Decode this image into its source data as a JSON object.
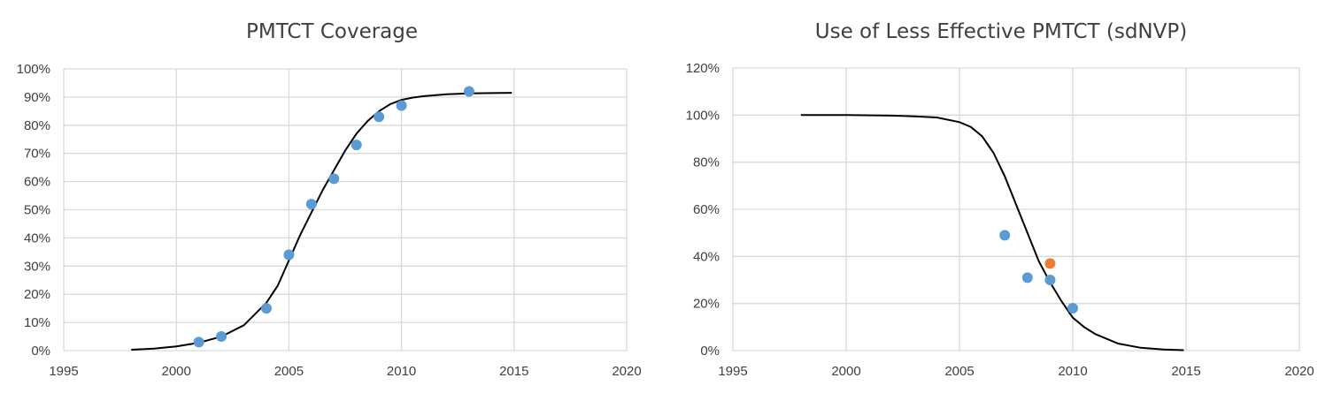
{
  "chart_data": [
    {
      "type": "scatter",
      "title": "PMTCT Coverage",
      "xlim": [
        1995,
        2020
      ],
      "ylim": [
        0,
        100
      ],
      "x_ticks": [
        "1995",
        "2000",
        "2005",
        "2010",
        "2015",
        "2020"
      ],
      "y_ticks": [
        "0%",
        "10%",
        "20%",
        "30%",
        "40%",
        "50%",
        "60%",
        "70%",
        "80%",
        "90%",
        "100%"
      ],
      "grid": true,
      "colors": {
        "points": "#5b9bd5",
        "curve": "#000000",
        "grid": "#d9d9d9"
      },
      "series": [
        {
          "kind": "points",
          "x": [
            2001,
            2002,
            2004,
            2005,
            2006,
            2007,
            2008,
            2009,
            2010,
            2013
          ],
          "y": [
            3,
            5,
            15,
            34,
            52,
            61,
            73,
            83,
            87,
            92
          ]
        },
        {
          "kind": "curve",
          "x": [
            1998,
            1999,
            2000,
            2001,
            2002,
            2003,
            2004,
            2004.5,
            2005,
            2005.5,
            2006,
            2006.5,
            2007,
            2007.5,
            2008,
            2008.5,
            2009,
            2009.5,
            2010,
            2010.5,
            2011,
            2012,
            2013,
            2014,
            2014.9
          ],
          "y": [
            0.3,
            0.7,
            1.5,
            2.8,
            5,
            9,
            17,
            23,
            32,
            41,
            49,
            57,
            64,
            71,
            77,
            81.5,
            85,
            87.5,
            89,
            89.8,
            90.3,
            91,
            91.3,
            91.4,
            91.5
          ]
        }
      ]
    },
    {
      "type": "scatter",
      "title": "Use of Less Effective PMTCT (sdNVP)",
      "xlim": [
        1995,
        2020
      ],
      "ylim": [
        0,
        120
      ],
      "x_ticks": [
        "1995",
        "2000",
        "2005",
        "2010",
        "2015",
        "2020"
      ],
      "y_ticks": [
        "0%",
        "20%",
        "40%",
        "60%",
        "80%",
        "100%",
        "120%"
      ],
      "grid": true,
      "colors": {
        "points": "#5b9bd5",
        "highlight": "#ed7d31",
        "curve": "#000000",
        "grid": "#d9d9d9"
      },
      "series": [
        {
          "kind": "points",
          "x": [
            2007,
            2008,
            2009,
            2010
          ],
          "y": [
            49,
            31,
            30,
            18
          ]
        },
        {
          "kind": "highlight",
          "x": [
            2009
          ],
          "y": [
            37
          ]
        },
        {
          "kind": "curve",
          "x": [
            1998,
            2000,
            2002,
            2003,
            2004,
            2005,
            2005.5,
            2006,
            2006.5,
            2007,
            2007.5,
            2008,
            2008.5,
            2009,
            2009.5,
            2010,
            2010.5,
            2011,
            2012,
            2013,
            2014,
            2014.9
          ],
          "y": [
            100,
            100,
            99.8,
            99.5,
            99,
            97,
            95,
            91,
            84,
            74,
            62,
            50,
            38,
            29,
            21,
            14,
            10,
            7,
            3,
            1.2,
            0.5,
            0.2
          ]
        }
      ]
    }
  ]
}
